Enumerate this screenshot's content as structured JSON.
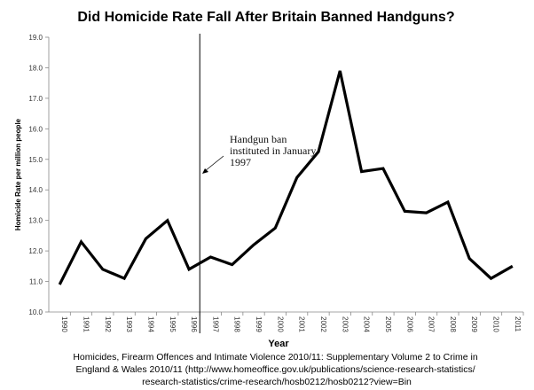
{
  "chart_data": {
    "type": "line",
    "title": "Did Homicide Rate Fall After Britain Banned Handguns?",
    "xlabel": "Year",
    "ylabel": "Homicide Rate per million people",
    "ylim": [
      10.0,
      19.0
    ],
    "yticks": [
      "10.0",
      "11.0",
      "12.0",
      "13.0",
      "14.0",
      "15.0",
      "16.0",
      "17.0",
      "18.0",
      "19.0"
    ],
    "categories": [
      "1990",
      "1991",
      "1992",
      "1993",
      "1994",
      "1995",
      "1996",
      "1997",
      "1998",
      "1999",
      "2000",
      "2001",
      "2002",
      "2003",
      "2004",
      "2005",
      "2006",
      "2007",
      "2008",
      "2009",
      "2010",
      "2011"
    ],
    "values": [
      10.9,
      12.3,
      11.4,
      11.1,
      12.4,
      13.0,
      11.4,
      11.8,
      11.55,
      12.2,
      12.75,
      14.4,
      15.25,
      17.9,
      14.6,
      14.7,
      13.3,
      13.25,
      13.6,
      11.75,
      11.1,
      11.5
    ],
    "series_color": "#000000",
    "grid": false,
    "marker": {
      "x_value": 1996.5,
      "annotation_lines": [
        "Handgun ban",
        "instituted in January",
        "1997"
      ]
    },
    "source_lines": [
      "Homicides, Firearm Offences and Intimate Violence 2010/11: Supplementary Volume 2 to Crime in",
      "England & Wales 2010/11 (http://www.homeoffice.gov.uk/publications/science-research-statistics/",
      "research-statistics/crime-research/hosb0212/hosb0212?view=Bin"
    ]
  }
}
